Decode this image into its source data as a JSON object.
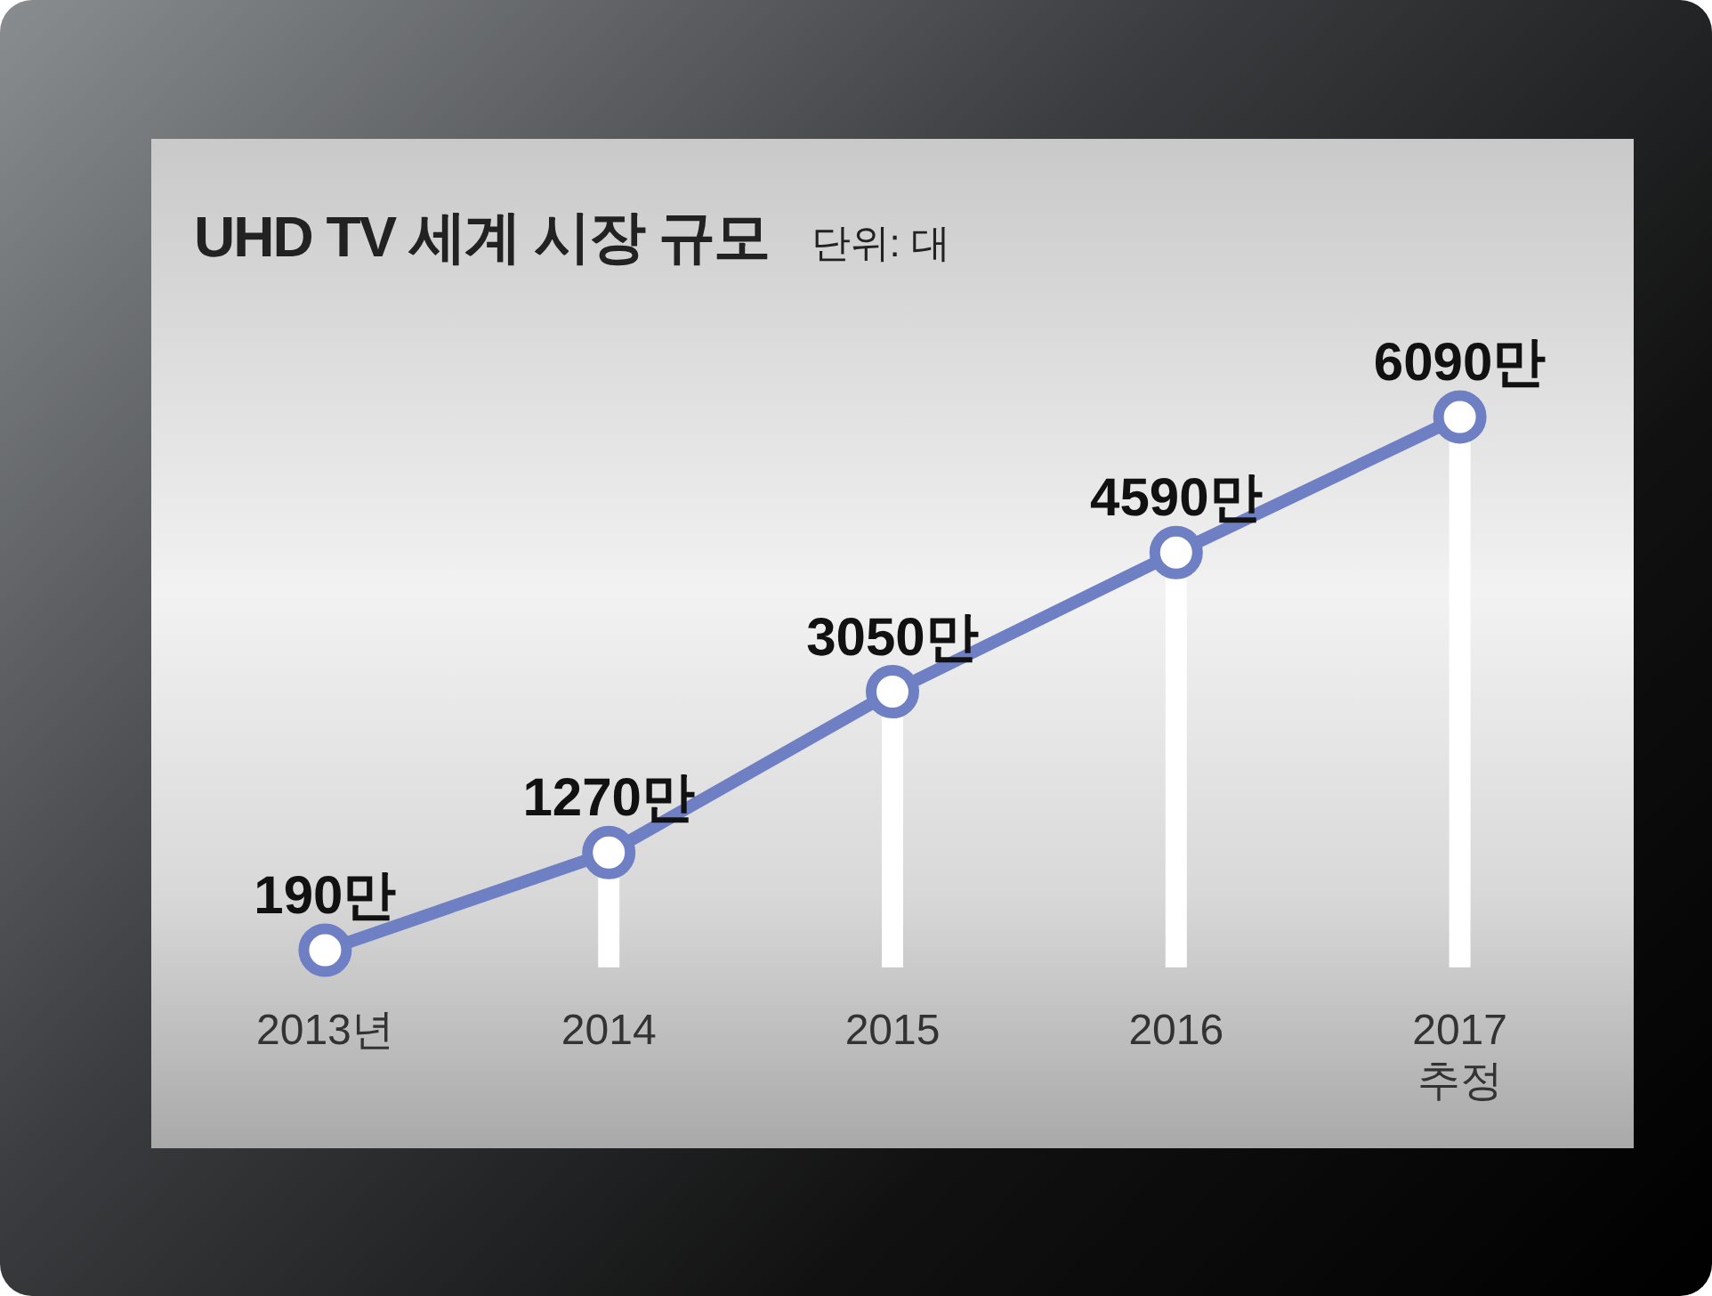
{
  "chart_data": {
    "type": "lollipop",
    "title": "UHD TV 세계 시장 규모",
    "subtitle": "단위: 대",
    "categories": [
      "2013년",
      "2014",
      "2015",
      "2016",
      "2017\n추정"
    ],
    "series": [
      {
        "color": "#6f7fc4",
        "values": [
          190,
          1270,
          3050,
          4590,
          6090
        ],
        "value_labels": [
          "190만",
          "1270만",
          "3050만",
          "4590만",
          "6090만"
        ]
      }
    ],
    "marker": "circle",
    "line_style": "solid",
    "legend": false,
    "tick_labels": "x"
  }
}
